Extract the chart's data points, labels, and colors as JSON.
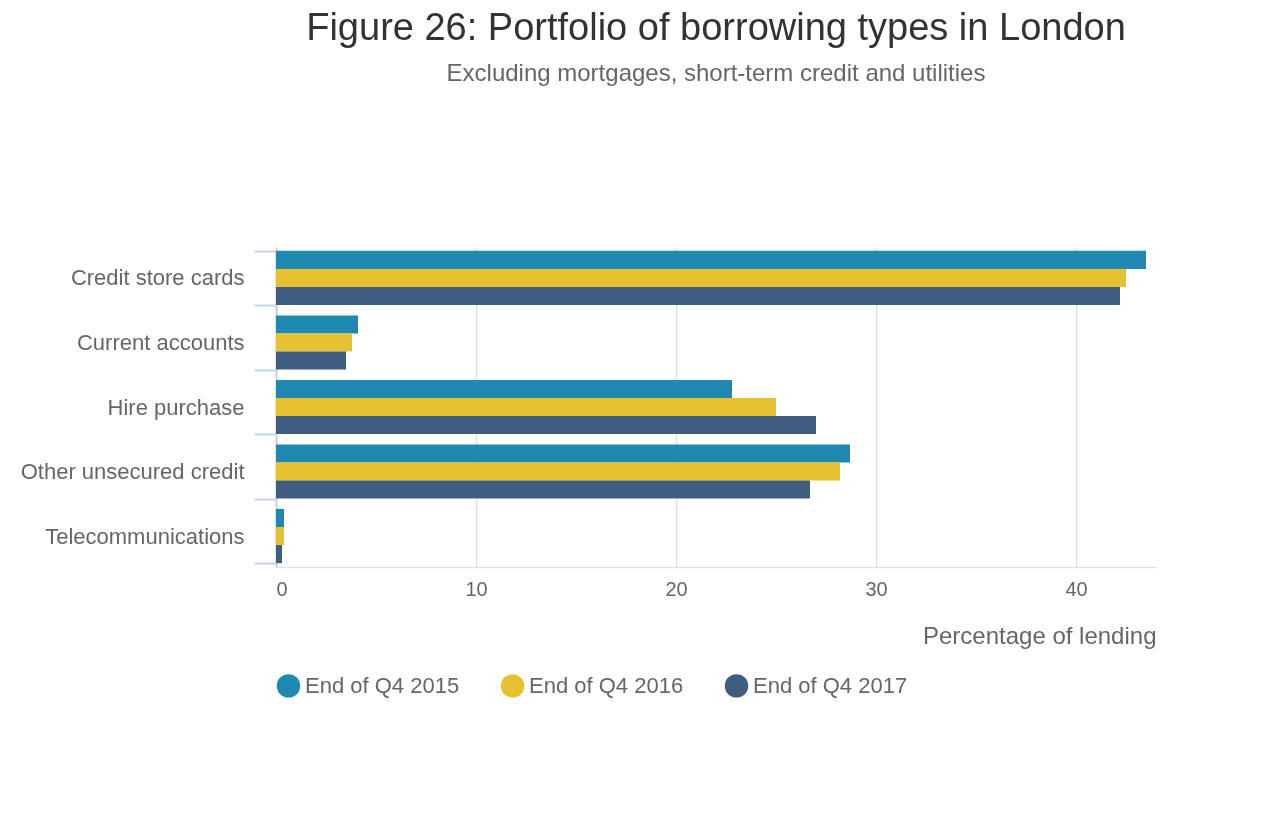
{
  "chart_data": {
    "type": "bar",
    "orientation": "horizontal",
    "title": "Figure 26: Portfolio of borrowing types in London",
    "subtitle": "Excluding mortgages, short-term credit and utilities",
    "xlabel": "Percentage of lending",
    "categories": [
      "Credit store cards",
      "Current accounts",
      "Hire purchase",
      "Other unsecured credit",
      "Telecommunications"
    ],
    "series": [
      {
        "name": "End of Q4 2015",
        "color": "#1b87b0",
        "values": [
          43.5,
          4.1,
          22.8,
          28.7,
          0.4
        ]
      },
      {
        "name": "End of Q4 2016",
        "color": "#e5c12f",
        "values": [
          42.5,
          3.8,
          25.0,
          28.2,
          0.4
        ]
      },
      {
        "name": "End of Q4 2017",
        "color": "#3b5a7b",
        "values": [
          42.2,
          3.5,
          27.0,
          26.7,
          0.3
        ]
      }
    ],
    "xlim": [
      0,
      44
    ],
    "xticks": [
      0,
      10,
      20,
      30,
      40
    ],
    "grid": "x",
    "legend": "bottom"
  }
}
